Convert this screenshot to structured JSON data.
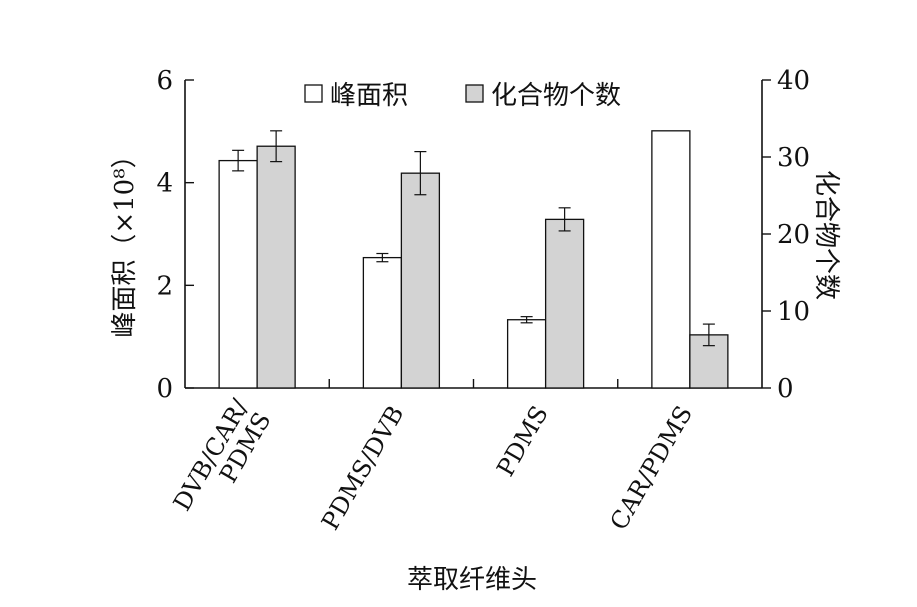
{
  "chart_data": {
    "type": "bar",
    "xlabel": "萃取纤维头",
    "ylabel": "峰面积（×10⁸）",
    "y2label": "化合物个数",
    "ylim": [
      0,
      6
    ],
    "y2lim": [
      0,
      40
    ],
    "yticks": [
      0,
      2,
      4,
      6
    ],
    "y2ticks": [
      0,
      10,
      20,
      30,
      40
    ],
    "categories": [
      {
        "lines": [
          "DVB/CAR/",
          "PDMS"
        ]
      },
      {
        "lines": [
          "PDMS/DVB"
        ]
      },
      {
        "lines": [
          "PDMS"
        ]
      },
      {
        "lines": [
          "CAR/PDMS"
        ]
      }
    ],
    "series": [
      {
        "name": "峰面积",
        "axis": "left",
        "fill": "#ffffff",
        "values": [
          4.43,
          2.54,
          1.33,
          5.01
        ],
        "errors": [
          0.2,
          0.08,
          0.06,
          0.0
        ]
      },
      {
        "name": "化合物个数",
        "axis": "right",
        "fill": "#d3d3d3",
        "values": [
          31.4,
          27.9,
          21.9,
          6.9
        ],
        "errors": [
          2.0,
          2.8,
          1.5,
          1.4
        ]
      }
    ],
    "legend_position": "top"
  }
}
